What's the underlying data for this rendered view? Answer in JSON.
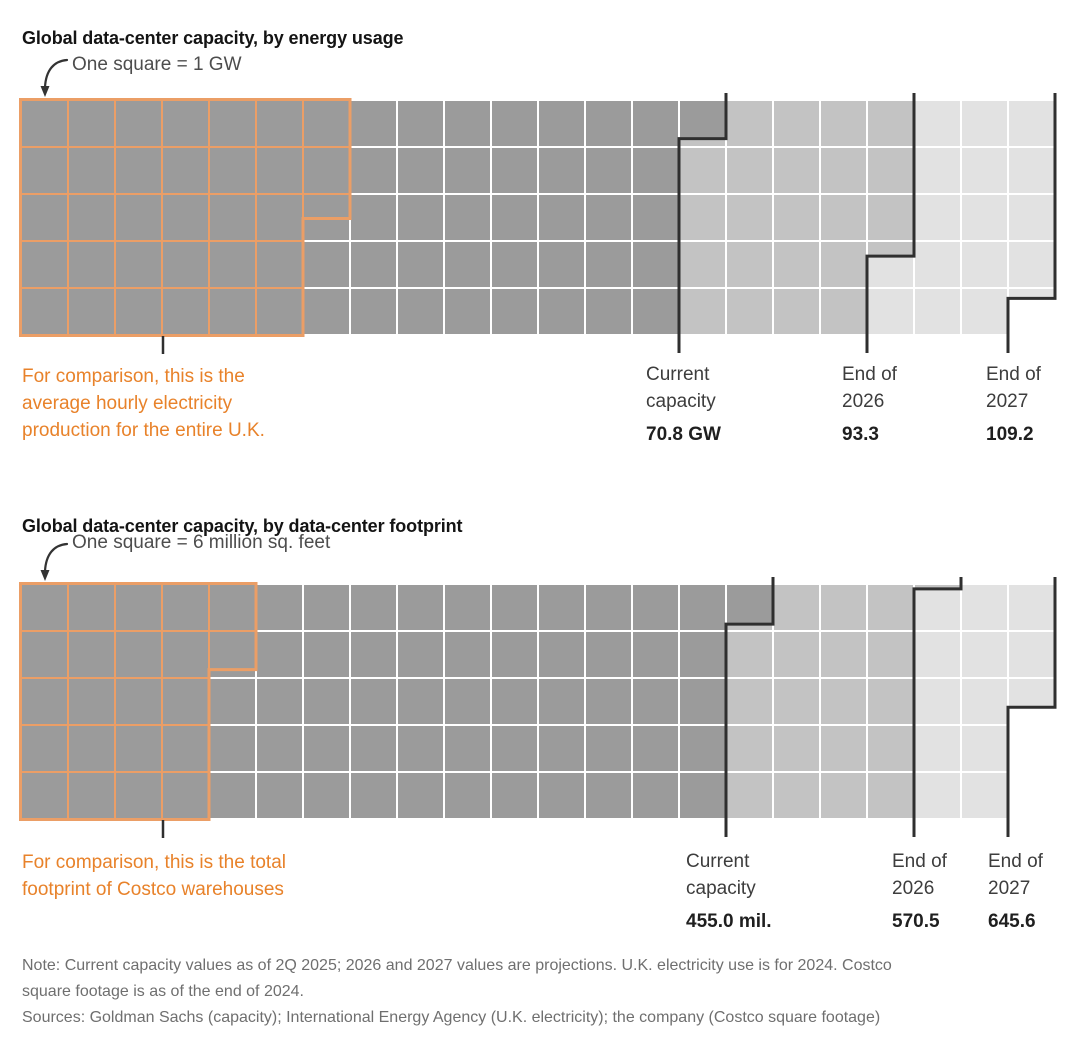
{
  "colors": {
    "current": "#9b9b9b",
    "end_2026": "#c3c3c3",
    "end_2027": "#e2e2e2",
    "grid_gap": "#ffffff",
    "step_line": "#2f2f2f",
    "comparison_outline": "#eb9e66",
    "comparison_text": "#e8822a"
  },
  "chart_data": [
    {
      "type": "waffle",
      "title": "Global data-center capacity, by energy usage",
      "square_note": "One square = 1 GW",
      "grid": {
        "rows": 5,
        "columns": 22
      },
      "unit": "GW",
      "units_per_square": 1,
      "series": [
        {
          "name": "Current capacity",
          "label_lines": [
            "Current",
            "capacity"
          ],
          "value": 70.8,
          "value_label": "70.8 GW",
          "squares": 70.8
        },
        {
          "name": "End of 2026",
          "label_lines": [
            "End of",
            "2026"
          ],
          "value": 93.3,
          "value_label": "93.3",
          "squares": 93.3
        },
        {
          "name": "End of 2027",
          "label_lines": [
            "End of",
            "2027"
          ],
          "value": 109.2,
          "value_label": "109.2",
          "squares": 109.2
        }
      ],
      "comparison": {
        "caption_lines": [
          "For comparison, this is the",
          "average hourly electricity",
          "production for the entire U.K."
        ],
        "squares": 32.5,
        "approx_value_gw": 32.5
      }
    },
    {
      "type": "waffle",
      "title": "Global data-center capacity, by data-center footprint",
      "square_note": "One square = 6 million sq. feet",
      "grid": {
        "rows": 5,
        "columns": 22
      },
      "unit": "million sq. feet",
      "units_per_square": 6,
      "series": [
        {
          "name": "Current capacity",
          "label_lines": [
            "Current",
            "capacity"
          ],
          "value": 455.0,
          "value_label": "455.0 mil.",
          "squares": 75.833
        },
        {
          "name": "End of 2026",
          "label_lines": [
            "End of",
            "2026"
          ],
          "value": 570.5,
          "value_label": "570.5",
          "squares": 95.083
        },
        {
          "name": "End of 2027",
          "label_lines": [
            "End of",
            "2027"
          ],
          "value": 645.6,
          "value_label": "645.6",
          "squares": 107.6
        }
      ],
      "comparison": {
        "caption_lines": [
          "For comparison, this is the total",
          "footprint of Costco warehouses"
        ],
        "squares": 21.8,
        "approx_value_million_sqft": 130.8
      }
    }
  ],
  "note": {
    "lines": [
      "Note: Current capacity values as of 2Q 2025; 2026 and 2027 values are projections. U.K. electricity use is for 2024. Costco",
      "square footage is as of the end of 2024.",
      "Sources: Goldman Sachs (capacity); International Energy Agency (U.K. electricity); the company (Costco square footage)"
    ]
  }
}
